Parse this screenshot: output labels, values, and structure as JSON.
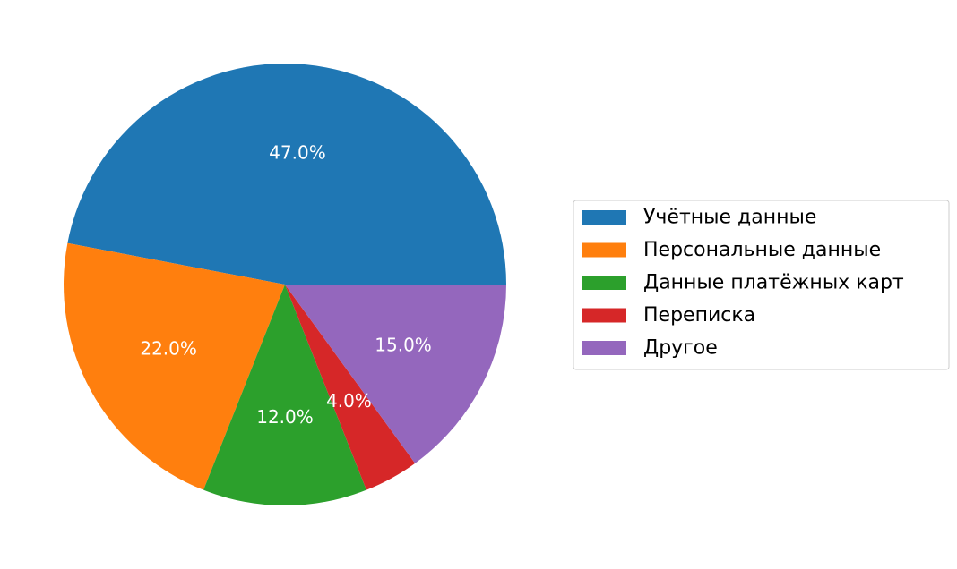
{
  "chart_data": {
    "type": "pie",
    "labels": [
      "Учётные данные",
      "Персональные данные",
      "Данные платёжных карт",
      "Переписка",
      "Другое"
    ],
    "values": [
      47.0,
      22.0,
      12.0,
      4.0,
      15.0
    ],
    "value_labels": [
      "47.0%",
      "22.0%",
      "12.0%",
      "4.0%",
      "15.0%"
    ],
    "colors": [
      "#1f77b4",
      "#ff7f0e",
      "#2ca02c",
      "#d62728",
      "#9467bd"
    ],
    "start_angle_deg": 0,
    "direction": "counterclockwise",
    "legend_position": "right"
  }
}
